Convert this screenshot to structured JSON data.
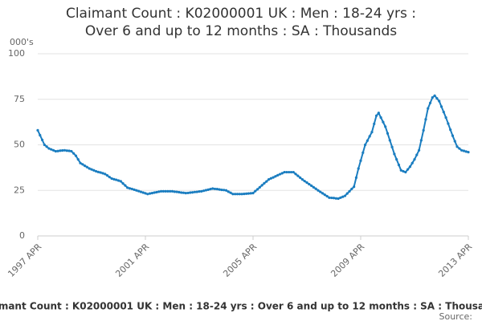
{
  "chart_data": {
    "type": "line",
    "title": "Claimant Count : K02000001 UK : Men : 18-24 yrs : Over 6 and up to 12 months : SA : Thousands",
    "y_label": "000's",
    "source": "Source:",
    "categories": [
      "1997 APR",
      null,
      null,
      null,
      null,
      null,
      null,
      null,
      null,
      null,
      null,
      null,
      null,
      null,
      null,
      null,
      null,
      null,
      null,
      null,
      null,
      null,
      null,
      null,
      null,
      null,
      null,
      null,
      null,
      null,
      null,
      null,
      null,
      null,
      null,
      null,
      null,
      null,
      null,
      null,
      null,
      null,
      null,
      null,
      null,
      null,
      null,
      null,
      "2001 APR",
      null,
      null,
      null,
      null,
      null,
      null,
      null,
      null,
      null,
      null,
      null,
      null,
      null,
      null,
      null,
      null,
      null,
      null,
      null,
      null,
      null,
      null,
      null,
      null,
      null,
      null,
      null,
      null,
      null,
      null,
      null,
      null,
      null,
      null,
      null,
      null,
      null,
      null,
      null,
      null,
      null,
      null,
      null,
      null,
      null,
      null,
      null,
      "2005 APR",
      null,
      null,
      null,
      null,
      null,
      null,
      null,
      null,
      null,
      null,
      null,
      null,
      null,
      null,
      null,
      null,
      null,
      null,
      null,
      null,
      null,
      null,
      null,
      null,
      null,
      null,
      null,
      null,
      null,
      null,
      null,
      null,
      null,
      null,
      null,
      null,
      null,
      null,
      null,
      null,
      null,
      null,
      null,
      null,
      null,
      null,
      null,
      "2009 APR",
      null,
      null,
      null,
      null,
      null,
      null,
      null,
      null,
      null,
      null,
      null,
      null,
      null,
      null,
      null,
      null,
      null,
      null,
      null,
      null,
      null,
      null,
      null,
      null,
      null,
      null,
      null,
      null,
      null,
      null,
      null,
      null,
      null,
      null,
      null,
      null,
      null,
      null,
      null,
      null,
      null,
      null,
      null,
      null,
      null,
      null,
      null,
      "2013 APR"
    ],
    "values": [
      58,
      55.3,
      52.7,
      50,
      49,
      48,
      47.5,
      47,
      46.5,
      46.6,
      46.8,
      46.9,
      47,
      46.8,
      46.7,
      46.5,
      45.3,
      44,
      42,
      40,
      39.3,
      38.5,
      37.8,
      37,
      36.5,
      36,
      35.5,
      35.1,
      34.8,
      34.4,
      34,
      33.2,
      32.3,
      31.5,
      31.1,
      30.8,
      30.4,
      30,
      28.8,
      27.7,
      26.5,
      26.1,
      25.8,
      25.4,
      25,
      24.6,
      24.2,
      23.8,
      23.4,
      23,
      23.3,
      23.5,
      23.8,
      24,
      24.3,
      24.5,
      24.5,
      24.5,
      24.5,
      24.5,
      24.5,
      24.3,
      24.2,
      24,
      23.8,
      23.7,
      23.5,
      23.6,
      23.8,
      23.9,
      24.1,
      24.2,
      24.4,
      24.5,
      24.8,
      25.1,
      25.4,
      25.7,
      26,
      25.8,
      25.7,
      25.5,
      25.3,
      25.2,
      25,
      24.3,
      23.7,
      23,
      23,
      23,
      23,
      23,
      23.1,
      23.2,
      23.3,
      23.4,
      23.5,
      24.6,
      25.6,
      26.7,
      27.8,
      28.9,
      29.9,
      31,
      31.6,
      32.1,
      32.7,
      33.3,
      33.9,
      34.4,
      35,
      35,
      35,
      35,
      35,
      34,
      33,
      32,
      31,
      30.1,
      29.3,
      28.4,
      27.6,
      26.7,
      25.9,
      25,
      24.2,
      23.4,
      22.6,
      21.8,
      21,
      20.9,
      20.8,
      20.6,
      20.5,
      21,
      21.5,
      22,
      23.3,
      24.5,
      25.8,
      27,
      32,
      37,
      41.3,
      45.7,
      50,
      52.3,
      54.7,
      57,
      61.5,
      66,
      67.5,
      65,
      62.5,
      60,
      56.3,
      52.5,
      48.8,
      45,
      42,
      39,
      36,
      35.5,
      35,
      36.5,
      38,
      40,
      42,
      44.5,
      47,
      52.5,
      58,
      64,
      70,
      73,
      76,
      77,
      75.5,
      74,
      71,
      68,
      65,
      61.7,
      58.3,
      55,
      52,
      49,
      48,
      47,
      46.7,
      46.3,
      46
    ],
    "color": "#1a7dc0",
    "ylim": [
      0,
      100
    ],
    "yticks": [
      0,
      25,
      50,
      75,
      100
    ],
    "grid": true
  }
}
